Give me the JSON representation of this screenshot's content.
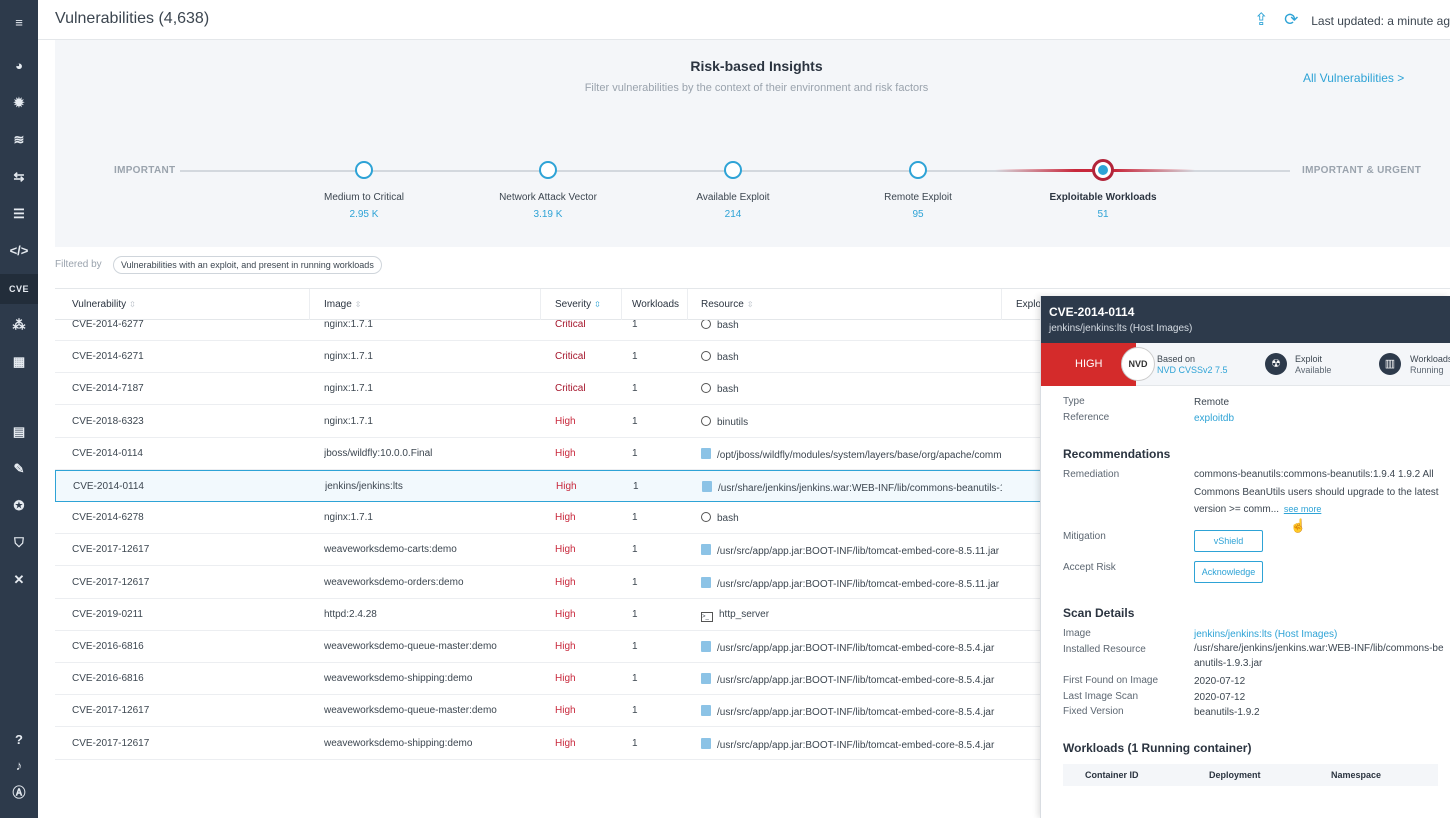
{
  "header": {
    "title": "Vulnerabilities (4,638)",
    "last_updated": "Last updated: a minute ag"
  },
  "sidebar": {
    "items": [
      {
        "name": "menu-icon",
        "glyph": "≡"
      },
      {
        "name": "dashboard-icon",
        "glyph": "◕"
      },
      {
        "name": "bug-icon",
        "glyph": "✹"
      },
      {
        "name": "layers-icon",
        "glyph": "≋"
      },
      {
        "name": "network-icon",
        "glyph": "⇆"
      },
      {
        "name": "server-icon",
        "glyph": "☰"
      },
      {
        "name": "code-icon",
        "glyph": "</>"
      },
      {
        "name": "cve-icon",
        "glyph": "CVE"
      },
      {
        "name": "cluster-icon",
        "glyph": "⁂"
      },
      {
        "name": "calendar-icon",
        "glyph": "▦"
      },
      {
        "name": "report-icon",
        "glyph": "▤"
      },
      {
        "name": "wrench-icon",
        "glyph": "✎"
      },
      {
        "name": "ribbon-icon",
        "glyph": "✪"
      },
      {
        "name": "shield-icon",
        "glyph": "⛉"
      },
      {
        "name": "tools-icon",
        "glyph": "✕"
      },
      {
        "name": "help-icon",
        "glyph": "?"
      },
      {
        "name": "bell-icon",
        "glyph": "♪"
      },
      {
        "name": "user-icon",
        "glyph": "Ⓐ"
      }
    ]
  },
  "insights": {
    "title": "Risk-based Insights",
    "subtitle": "Filter vulnerabilities by the context of their environment and risk factors",
    "all_link": "All Vulnerabilities >",
    "left_label": "IMPORTANT",
    "right_label": "IMPORTANT & URGENT",
    "steps": [
      {
        "label": "Medium to Critical",
        "count": "2.95 K"
      },
      {
        "label": "Network Attack Vector",
        "count": "3.19 K"
      },
      {
        "label": "Available Exploit",
        "count": "214"
      },
      {
        "label": "Remote Exploit",
        "count": "95"
      },
      {
        "label": "Exploitable Workloads",
        "count": "51"
      }
    ]
  },
  "filter": {
    "label": "Filtered by",
    "chip": "Vulnerabilities with an exploit, and present in running workloads"
  },
  "table": {
    "columns": [
      "Vulnerability",
      "Image",
      "Severity",
      "Workloads",
      "Resource",
      "Exploi"
    ],
    "rows": [
      {
        "vuln": "CVE-2014-6277",
        "image": "nginx:1.7.1",
        "severity": "Critical",
        "workloads": "1",
        "resource": "bash",
        "icon": "debian"
      },
      {
        "vuln": "CVE-2014-6271",
        "image": "nginx:1.7.1",
        "severity": "Critical",
        "workloads": "1",
        "resource": "bash",
        "icon": "debian"
      },
      {
        "vuln": "CVE-2014-7187",
        "image": "nginx:1.7.1",
        "severity": "Critical",
        "workloads": "1",
        "resource": "bash",
        "icon": "debian"
      },
      {
        "vuln": "CVE-2018-6323",
        "image": "nginx:1.7.1",
        "severity": "High",
        "workloads": "1",
        "resource": "binutils",
        "icon": "debian"
      },
      {
        "vuln": "CVE-2014-0114",
        "image": "jboss/wildfly:10.0.0.Final",
        "severity": "High",
        "workloads": "1",
        "resource": "/opt/jboss/wildfly/modules/system/layers/base/org/apache/comm",
        "icon": "file"
      },
      {
        "vuln": "CVE-2014-0114",
        "image": "jenkins/jenkins:lts",
        "severity": "High",
        "workloads": "1",
        "resource": "/usr/share/jenkins/jenkins.war:WEB-INF/lib/commons-beanutils-1.9.",
        "icon": "file"
      },
      {
        "vuln": "CVE-2014-6278",
        "image": "nginx:1.7.1",
        "severity": "High",
        "workloads": "1",
        "resource": "bash",
        "icon": "debian"
      },
      {
        "vuln": "CVE-2017-12617",
        "image": "weaveworksdemo-carts:demo",
        "severity": "High",
        "workloads": "1",
        "resource": "/usr/src/app/app.jar:BOOT-INF/lib/tomcat-embed-core-8.5.11.jar",
        "icon": "file"
      },
      {
        "vuln": "CVE-2017-12617",
        "image": "weaveworksdemo-orders:demo",
        "severity": "High",
        "workloads": "1",
        "resource": "/usr/src/app/app.jar:BOOT-INF/lib/tomcat-embed-core-8.5.11.jar",
        "icon": "file"
      },
      {
        "vuln": "CVE-2019-0211",
        "image": "httpd:2.4.28",
        "severity": "High",
        "workloads": "1",
        "resource": "http_server",
        "icon": "term"
      },
      {
        "vuln": "CVE-2016-6816",
        "image": "weaveworksdemo-queue-master:demo",
        "severity": "High",
        "workloads": "1",
        "resource": "/usr/src/app/app.jar:BOOT-INF/lib/tomcat-embed-core-8.5.4.jar",
        "icon": "file"
      },
      {
        "vuln": "CVE-2016-6816",
        "image": "weaveworksdemo-shipping:demo",
        "severity": "High",
        "workloads": "1",
        "resource": "/usr/src/app/app.jar:BOOT-INF/lib/tomcat-embed-core-8.5.4.jar",
        "icon": "file"
      },
      {
        "vuln": "CVE-2017-12617",
        "image": "weaveworksdemo-queue-master:demo",
        "severity": "High",
        "workloads": "1",
        "resource": "/usr/src/app/app.jar:BOOT-INF/lib/tomcat-embed-core-8.5.4.jar",
        "icon": "file"
      },
      {
        "vuln": "CVE-2017-12617",
        "image": "weaveworksdemo-shipping:demo",
        "severity": "High",
        "workloads": "1",
        "resource": "/usr/src/app/app.jar:BOOT-INF/lib/tomcat-embed-core-8.5.4.jar",
        "icon": "file"
      }
    ],
    "selected_index": 5
  },
  "panel": {
    "title": "CVE-2014-0114",
    "subtitle": "jenkins/jenkins:lts (Host Images)",
    "severity": "HIGH",
    "nvd": "NVD",
    "based_on": "Based on",
    "cvss": "NVD CVSSv2 7.5",
    "exploit": "Exploit",
    "exploit_status": "Available",
    "workloads": "Workloads",
    "workloads_status": "Running",
    "type_label": "Type",
    "type_value": "Remote",
    "reference_label": "Reference",
    "reference_value": "exploitdb",
    "recommendations_title": "Recommendations",
    "remediation_label": "Remediation",
    "remediation_value": "commons-beanutils:commons-beanutils:1.9.4 1.9.2 All Commons BeanUtils users should upgrade to the latest version >= comm...",
    "see_more": "see more",
    "mitigation_label": "Mitigation",
    "mitigation_button": "vShield",
    "accept_label": "Accept Risk",
    "accept_button": "Acknowledge",
    "scan_title": "Scan Details",
    "image_label": "Image",
    "image_value": "jenkins/jenkins:lts (Host Images)",
    "installed_label": "Installed Resource",
    "installed_value": "/usr/share/jenkins/jenkins.war:WEB-INF/lib/commons-beanutils-1.9.3.jar",
    "first_found_label": "First Found on Image",
    "first_found_value": "2020-07-12",
    "last_scan_label": "Last Image Scan",
    "last_scan_value": "2020-07-12",
    "fixed_label": "Fixed Version",
    "fixed_value": "beanutils-1.9.2",
    "workloads_title": "Workloads (1 Running container)",
    "wl_columns": [
      "Container ID",
      "Deployment",
      "Namespace"
    ]
  },
  "colors": {
    "sidebar": "#2d3a4b",
    "accent": "#2ea3d6",
    "high": "#c8283c",
    "badge_high": "#d42b2b"
  }
}
